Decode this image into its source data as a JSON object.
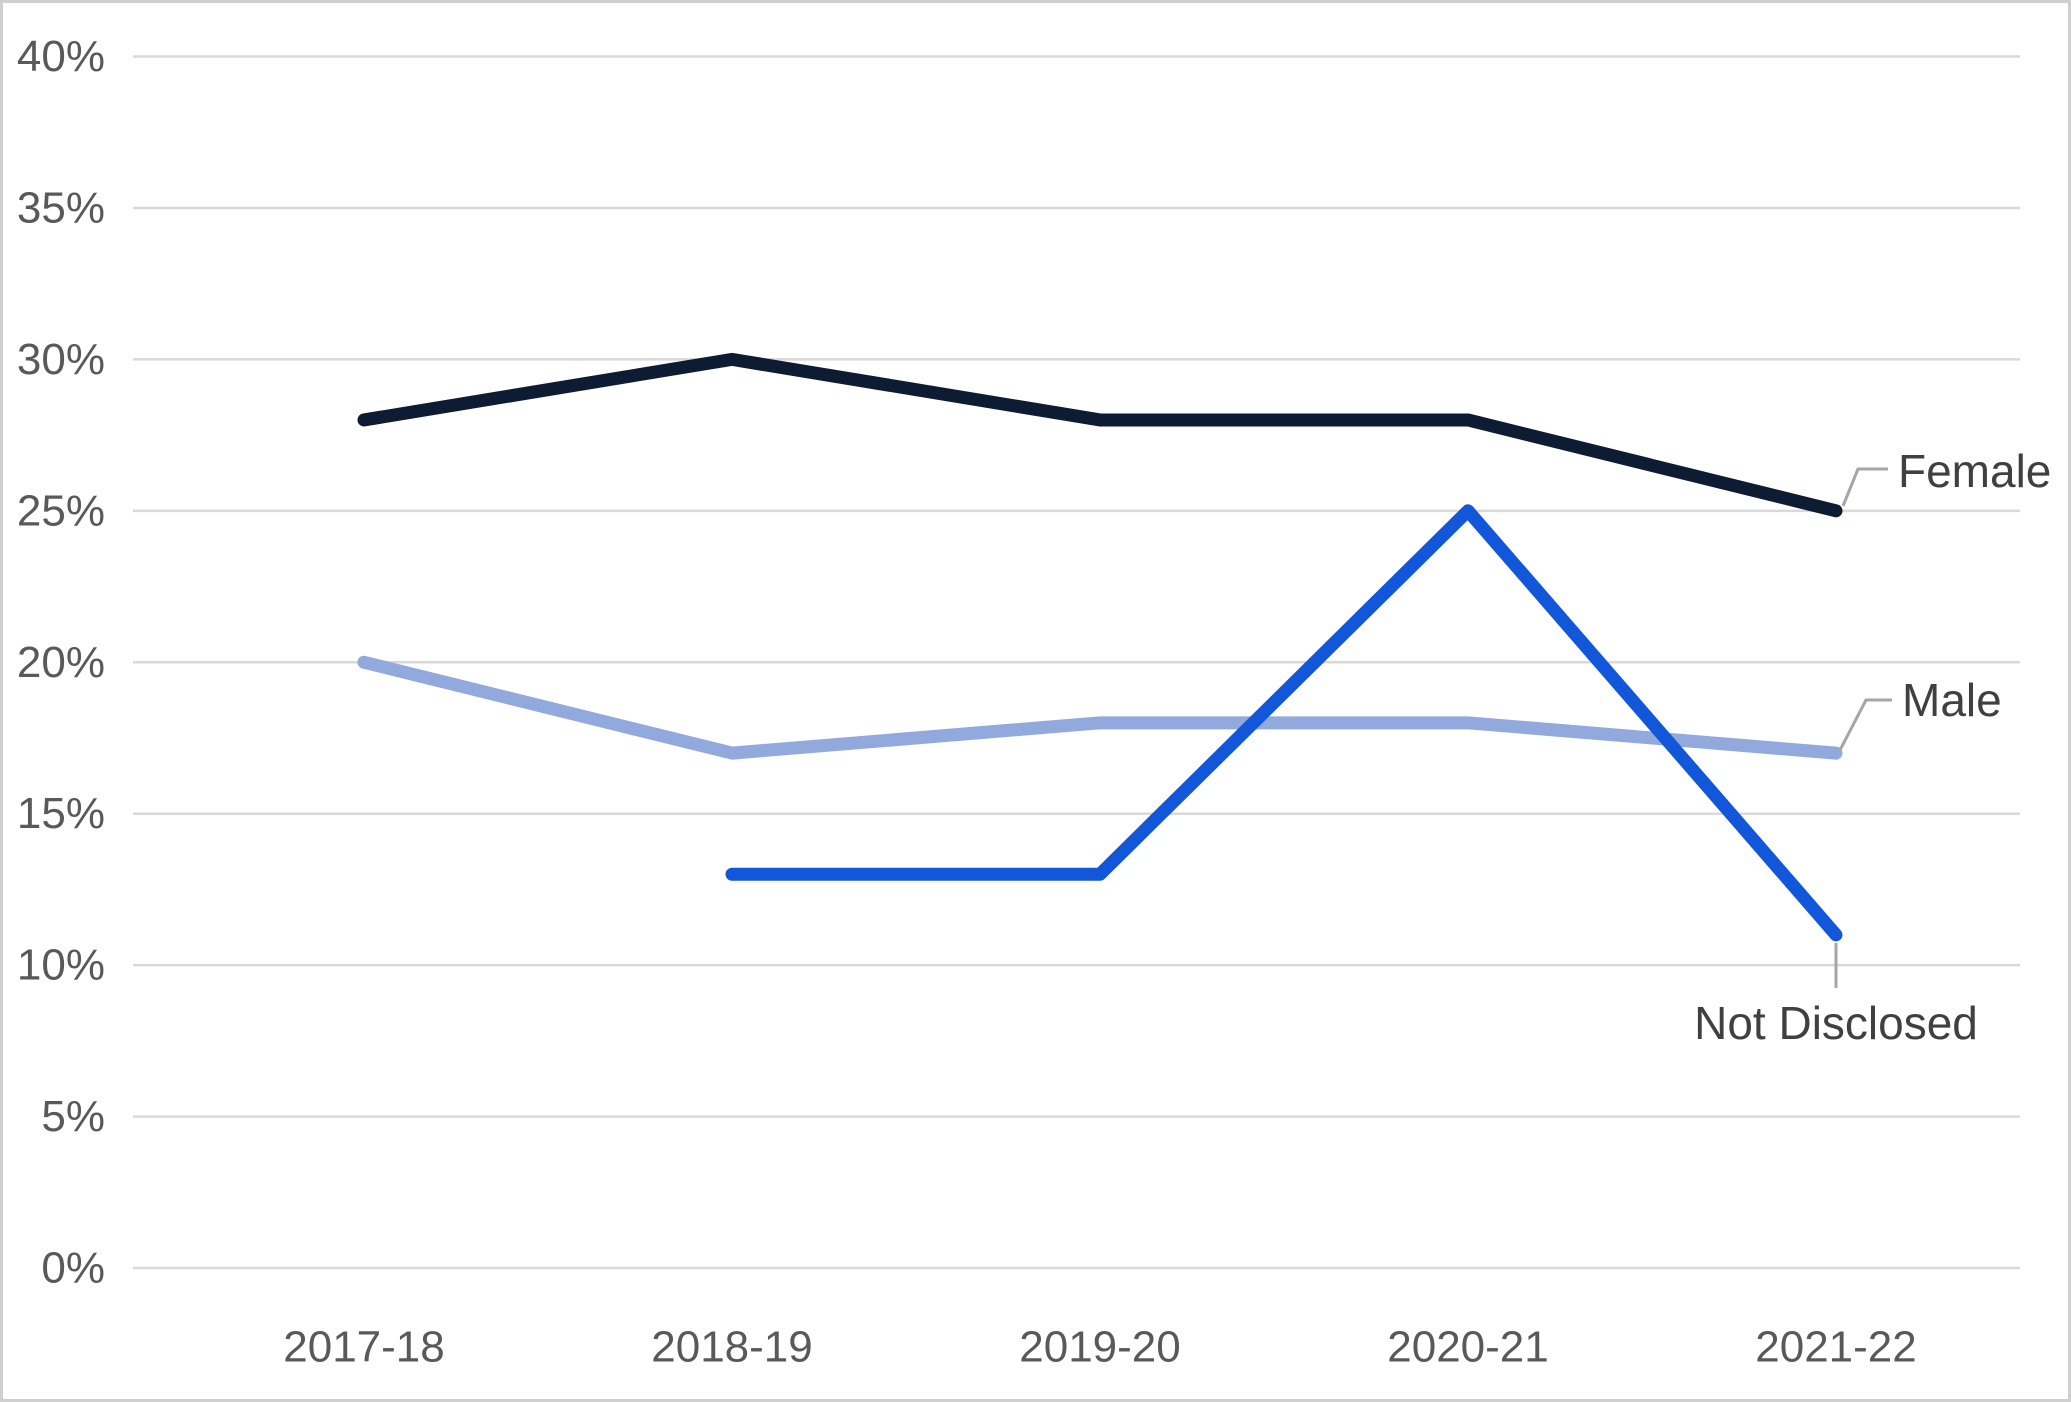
{
  "chart_data": {
    "type": "line",
    "categories": [
      "2017-18",
      "2018-19",
      "2019-20",
      "2020-21",
      "2021-22"
    ],
    "series": [
      {
        "name": "Female",
        "values": [
          28,
          30,
          28,
          28,
          25
        ],
        "color": "#0d1b33"
      },
      {
        "name": "Male",
        "values": [
          20,
          17,
          18,
          18,
          17
        ],
        "color": "#92a9dd"
      },
      {
        "name": "Not Disclosed",
        "values": [
          null,
          13,
          13,
          25,
          11
        ],
        "color": "#1257d9"
      }
    ],
    "title": "",
    "xlabel": "",
    "ylabel": "",
    "ylim": [
      0,
      40
    ],
    "y_tick_values": [
      0,
      5,
      10,
      15,
      20,
      25,
      30,
      35,
      40
    ],
    "y_tick_labels": [
      "0%",
      "5%",
      "10%",
      "15%",
      "20%",
      "25%",
      "30%",
      "35%",
      "40%"
    ],
    "grid": true,
    "legend_position": "end-of-line-callouts"
  },
  "styles": {
    "background": "#ffffff",
    "border_color": "#cfcfcf",
    "grid_color": "#d9d9d9",
    "axis_text_color": "#595959",
    "series_label_color": "#404040",
    "leader_color": "#a6a6a6"
  }
}
